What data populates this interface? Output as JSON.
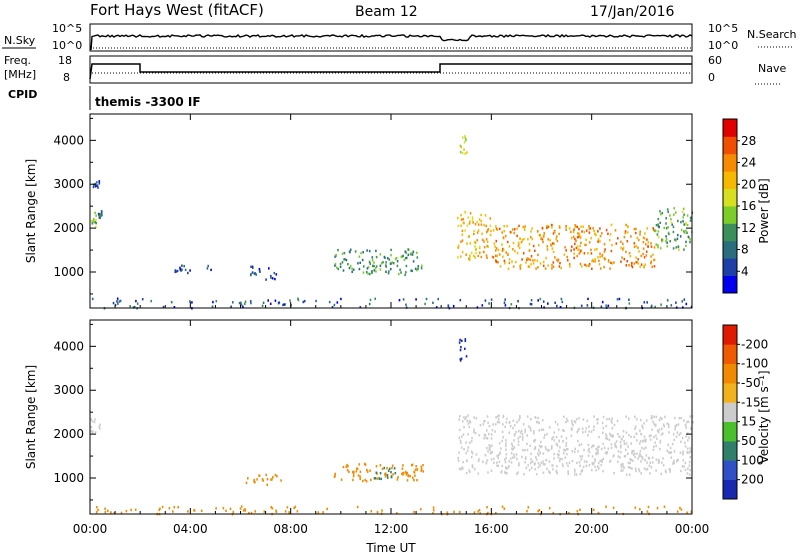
{
  "header": {
    "station": "Fort Hays West (fitACF)",
    "beam": "Beam 12",
    "date": "17/Jan/2016"
  },
  "status_panels": {
    "nsky": {
      "left_label": "N.Sky",
      "ticks": [
        "10^5",
        "10^0"
      ],
      "right_label": "N.Search",
      "right_ticks": [
        "10^5",
        "10^0"
      ]
    },
    "freq": {
      "left_label_1": "Freq.",
      "left_label_2": "[MHz]",
      "ticks": [
        "18",
        "8"
      ],
      "right_label": "Nave",
      "right_ticks": [
        "60",
        "0"
      ]
    },
    "cpid": {
      "left_label": "CPID",
      "text": "themis -3300 IF"
    }
  },
  "chart_data": [
    {
      "type": "heatmap",
      "name_on_colorbar": "Power [dB]",
      "ylabel": "Slant Range [km]",
      "yticks": [
        1000,
        2000,
        3000,
        4000
      ],
      "ylim": [
        180,
        4600
      ],
      "xlim_hours": [
        0,
        24
      ],
      "colorbar": {
        "label": "Power [dB]",
        "ticks": [
          "4",
          "8",
          "12",
          "16",
          "20",
          "24",
          "28"
        ],
        "colors": [
          "#0000ee",
          "#1f3fa8",
          "#2a6e7e",
          "#3a8f5a",
          "#7ccc2a",
          "#d6e020",
          "#f6b800",
          "#f78a00",
          "#f04e00",
          "#e00000"
        ]
      },
      "echo_regions": [
        {
          "t": [
            0.0,
            0.25
          ],
          "range": [
            2050,
            2400
          ],
          "value": 16
        },
        {
          "t": [
            0.25,
            0.45
          ],
          "range": [
            2200,
            2450
          ],
          "value": 8
        },
        {
          "t": [
            0.1,
            0.35
          ],
          "range": [
            2950,
            3100
          ],
          "value": 6
        },
        {
          "t": [
            3.3,
            4.8
          ],
          "range": [
            1000,
            1200
          ],
          "value": 7
        },
        {
          "t": [
            6.3,
            7.5
          ],
          "range": [
            850,
            1150
          ],
          "value": 7
        },
        {
          "t": [
            9.7,
            13.2
          ],
          "range": [
            950,
            1550
          ],
          "value": 12
        },
        {
          "t": [
            14.7,
            15.0
          ],
          "range": [
            3700,
            4200
          ],
          "value": 18
        },
        {
          "t": [
            14.6,
            16.0
          ],
          "range": [
            1300,
            2400
          ],
          "value": 22
        },
        {
          "t": [
            16.0,
            22.5
          ],
          "range": [
            1100,
            2100
          ],
          "value": 24
        },
        {
          "t": [
            22.5,
            24.0
          ],
          "range": [
            1500,
            2500
          ],
          "value": 14
        },
        {
          "t": [
            0.0,
            24.0
          ],
          "range": [
            200,
            420
          ],
          "value": 8
        }
      ]
    },
    {
      "type": "heatmap",
      "ylabel": "Slant Range [km]",
      "yticks": [
        1000,
        2000,
        3000,
        4000
      ],
      "ylim": [
        180,
        4600
      ],
      "xlim_hours": [
        0,
        24
      ],
      "xticks": [
        "00:00",
        "04:00",
        "08:00",
        "12:00",
        "16:00",
        "20:00",
        "00:00"
      ],
      "xlabel": "Time UT",
      "colorbar": {
        "label": "Velocity [m s⁻¹]",
        "ticks": [
          "200",
          "100",
          "50",
          "15",
          "-15",
          "-50",
          "-100",
          "-200"
        ],
        "colors": [
          "#1828b0",
          "#3050c8",
          "#2f7f6a",
          "#4cbf2c",
          "#cccccc",
          "#f2b21c",
          "#f28a00",
          "#f05a00",
          "#e01c00"
        ]
      },
      "echo_regions": [
        {
          "t": [
            0.0,
            0.4
          ],
          "range": [
            2050,
            2450
          ],
          "value": 0
        },
        {
          "t": [
            6.2,
            7.6
          ],
          "range": [
            850,
            1100
          ],
          "value": -60
        },
        {
          "t": [
            9.7,
            13.3
          ],
          "range": [
            950,
            1350
          ],
          "value": -60
        },
        {
          "t": [
            11.3,
            12.2
          ],
          "range": [
            1000,
            1300
          ],
          "value": 40
        },
        {
          "t": [
            14.7,
            15.0
          ],
          "range": [
            3700,
            4200
          ],
          "value": 200
        },
        {
          "t": [
            14.6,
            24.0
          ],
          "range": [
            1100,
            2450
          ],
          "value": 0
        },
        {
          "t": [
            0.0,
            24.0
          ],
          "range": [
            200,
            380
          ],
          "value": -60
        }
      ]
    }
  ]
}
